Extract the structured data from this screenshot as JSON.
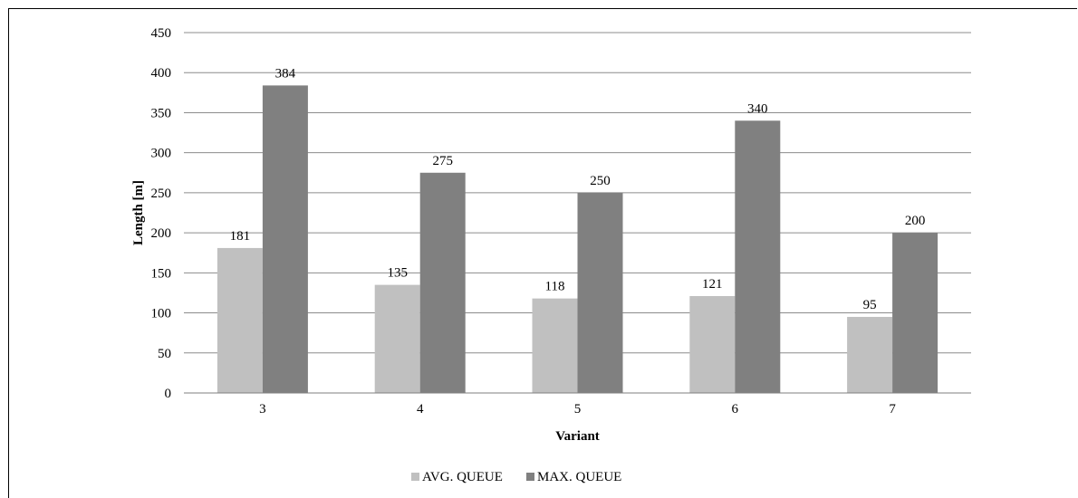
{
  "chart_data": {
    "type": "bar",
    "categories": [
      "3",
      "4",
      "5",
      "6",
      "7"
    ],
    "series": [
      {
        "name": "AVG. QUEUE",
        "values": [
          181,
          135,
          118,
          121,
          95
        ],
        "color": "#c0c0c0"
      },
      {
        "name": "MAX. QUEUE",
        "values": [
          384,
          275,
          250,
          340,
          200
        ],
        "color": "#808080"
      }
    ],
    "xlabel": "Variant",
    "ylabel": "Length [m]",
    "ylim": [
      0,
      450
    ],
    "yticks": [
      0,
      50,
      100,
      150,
      200,
      250,
      300,
      350,
      400,
      450
    ],
    "grid": true,
    "legend_position": "bottom"
  }
}
